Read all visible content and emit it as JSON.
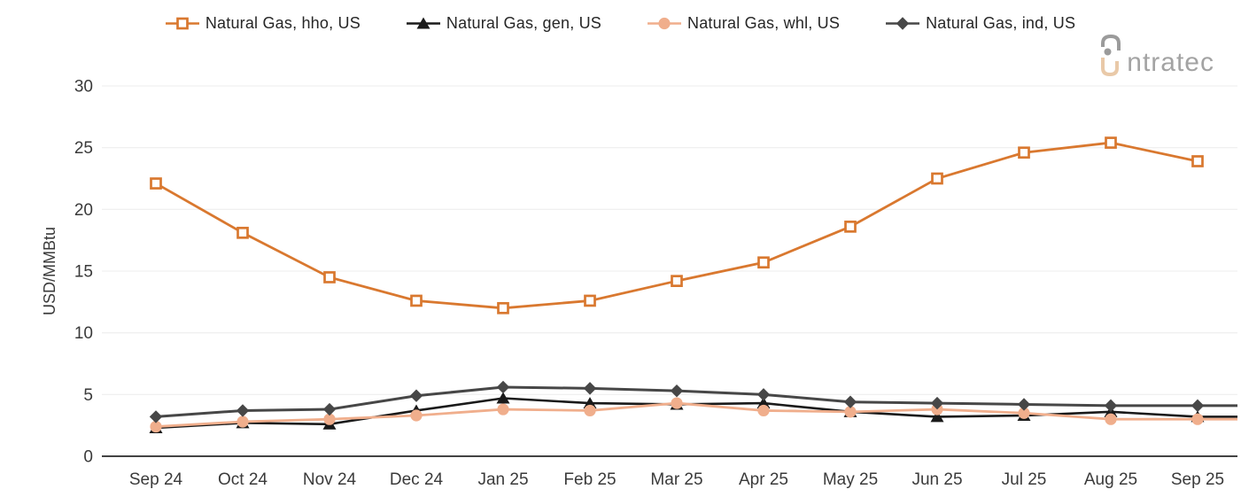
{
  "legend": {
    "items": [
      {
        "key": "hho",
        "label": "Natural Gas, hho, US",
        "marker": "square-open",
        "color": "#D9782F"
      },
      {
        "key": "gen",
        "label": "Natural Gas, gen, US",
        "marker": "triangle",
        "color": "#1A1A1A"
      },
      {
        "key": "whl",
        "label": "Natural Gas, whl, US",
        "marker": "circle",
        "color": "#F0AE8C"
      },
      {
        "key": "ind",
        "label": "Natural Gas, ind, US",
        "marker": "diamond",
        "color": "#474747"
      }
    ]
  },
  "logo": {
    "text_after_mark": "ntratec",
    "brand": "intratec",
    "gray": "#9B9B9B",
    "tan": "#E9C9A8"
  },
  "chart_data": {
    "type": "line",
    "title": "",
    "xlabel": "",
    "ylabel": "USD/MMBtu",
    "x_categories": [
      "Sep 24",
      "Oct 24",
      "Nov 24",
      "Dec 24",
      "Jan 25",
      "Feb 25",
      "Mar 25",
      "Apr 25",
      "May 25",
      "Jun 25",
      "Jul 25",
      "Aug 25",
      "Sep 25"
    ],
    "yticks": [
      0,
      5,
      10,
      15,
      20,
      25,
      30
    ],
    "ylim": [
      0,
      30
    ],
    "grid": "horizontal",
    "legend_position": "top",
    "unit": "USD/MMBtu",
    "series": [
      {
        "key": "hho",
        "name": "Natural Gas, hho, US",
        "marker": "square-open",
        "color": "#D9782F",
        "line_width": 2.8,
        "extends_to_plot_edge": false,
        "values": [
          22.1,
          18.1,
          14.5,
          12.6,
          12.0,
          12.6,
          14.2,
          15.7,
          18.6,
          22.5,
          24.6,
          25.4,
          23.9
        ]
      },
      {
        "key": "gen",
        "name": "Natural Gas, gen, US",
        "marker": "triangle",
        "color": "#1A1A1A",
        "line_width": 2.6,
        "extends_to_plot_edge": true,
        "values": [
          2.3,
          2.7,
          2.6,
          3.7,
          4.7,
          4.3,
          4.2,
          4.3,
          3.6,
          3.2,
          3.3,
          3.6,
          3.2
        ]
      },
      {
        "key": "whl",
        "name": "Natural Gas, whl, US",
        "marker": "circle",
        "color": "#F0AE8C",
        "line_width": 2.8,
        "extends_to_plot_edge": true,
        "values": [
          2.4,
          2.8,
          3.0,
          3.3,
          3.8,
          3.7,
          4.3,
          3.7,
          3.6,
          3.8,
          3.5,
          3.0,
          3.0
        ]
      },
      {
        "key": "ind",
        "name": "Natural Gas, ind, US",
        "marker": "diamond",
        "color": "#474747",
        "line_width": 3.0,
        "extends_to_plot_edge": true,
        "values": [
          3.2,
          3.7,
          3.8,
          4.9,
          5.6,
          5.5,
          5.3,
          5.0,
          4.4,
          4.3,
          4.2,
          4.1,
          4.1
        ]
      }
    ],
    "colors": {
      "gridline": "#F0F0F0",
      "axis_line": "#434343",
      "tick_text": "#3A3A3A",
      "legend_text": "#262626"
    }
  }
}
